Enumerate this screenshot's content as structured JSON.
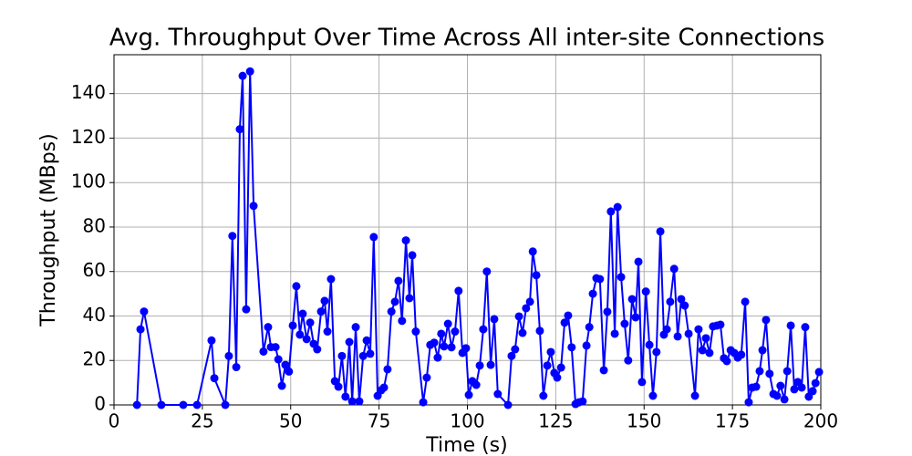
{
  "chart_data": {
    "type": "line",
    "title": "Avg. Throughput Over Time Across All inter-site Connections",
    "x_label": "Time (s)",
    "y_label": "Throughput (MBps)",
    "xlim": [
      0,
      200
    ],
    "xticks": [
      0,
      25,
      50,
      75,
      100,
      125,
      150,
      175,
      200
    ],
    "ylim": [
      0,
      157.5
    ],
    "yticks": [
      0,
      20,
      40,
      60,
      80,
      100,
      120,
      140
    ],
    "grid": true,
    "color": "#0000ff",
    "x": [
      6.5,
      7.5,
      8.5,
      13.4,
      19.6,
      23.5,
      27.6,
      28.4,
      31.5,
      32.5,
      33.5,
      34.6,
      35.6,
      36.4,
      37.4,
      38.5,
      39.5,
      42.3,
      43.6,
      44.4,
      45.7,
      46.5,
      47.5,
      48.5,
      49.5,
      50.6,
      51.6,
      52.6,
      53.4,
      54.5,
      55.5,
      56.5,
      57.5,
      58.6,
      59.6,
      60.4,
      61.4,
      62.5,
      63.5,
      64.5,
      65.5,
      66.6,
      67.4,
      68.4,
      69.4,
      70.5,
      71.5,
      72.5,
      73.5,
      74.6,
      75.6,
      76.4,
      77.4,
      78.5,
      79.5,
      80.5,
      81.5,
      82.6,
      83.6,
      84.4,
      85.4,
      87.5,
      88.5,
      89.5,
      90.6,
      91.6,
      92.6,
      93.4,
      94.5,
      95.5,
      96.5,
      97.5,
      98.6,
      99.6,
      100.4,
      101.4,
      102.5,
      103.5,
      104.5,
      105.5,
      106.6,
      107.6,
      108.6,
      111.5,
      112.5,
      113.5,
      114.6,
      115.6,
      116.6,
      117.7,
      118.5,
      119.5,
      120.5,
      121.5,
      122.6,
      123.6,
      124.6,
      125.4,
      126.5,
      127.5,
      128.5,
      129.5,
      130.6,
      131.6,
      132.6,
      133.7,
      134.5,
      135.5,
      136.5,
      137.5,
      138.6,
      139.6,
      140.6,
      141.7,
      142.5,
      143.5,
      144.5,
      145.5,
      146.6,
      147.6,
      148.4,
      149.4,
      150.5,
      151.5,
      152.5,
      153.5,
      154.6,
      155.6,
      156.4,
      157.4,
      158.5,
      159.5,
      160.5,
      161.5,
      162.6,
      164.4,
      165.4,
      166.5,
      167.5,
      168.5,
      169.5,
      170.6,
      171.6,
      172.6,
      173.4,
      174.5,
      175.5,
      176.5,
      177.5,
      178.6,
      179.6,
      180.6,
      181.7,
      182.7,
      183.5,
      184.5,
      185.5,
      186.6,
      187.6,
      188.6,
      189.7,
      190.5,
      191.5,
      192.5,
      193.5,
      194.6,
      195.6,
      196.6,
      197.7,
      198.5,
      199.5
    ],
    "values": [
      0,
      34,
      42,
      0,
      0,
      0,
      29,
      12,
      0,
      22,
      76,
      17,
      124,
      148,
      43,
      150,
      89.5,
      24,
      35,
      26,
      26,
      20.5,
      8.6,
      18,
      15,
      35.7,
      53.4,
      31.6,
      41,
      29.6,
      37,
      27.5,
      25,
      42,
      46.8,
      33,
      56.6,
      10.7,
      8.2,
      22,
      3.7,
      28.3,
      1.6,
      35,
      1.6,
      22,
      29,
      23,
      75.5,
      4.1,
      6.6,
      7.8,
      16,
      42,
      46.4,
      55.8,
      37.8,
      74,
      48,
      67.3,
      33,
      1.2,
      12.3,
      27,
      28,
      21.3,
      32,
      26.3,
      36.5,
      25.9,
      33,
      51.3,
      23.4,
      25.5,
      4.5,
      10.7,
      9,
      17.7,
      34,
      60,
      18,
      38.6,
      4.9,
      0,
      22,
      25,
      39.8,
      32.4,
      43.5,
      46.4,
      69,
      58.3,
      33.3,
      4.1,
      17.7,
      23.8,
      14.4,
      12.3,
      16.8,
      37,
      40.2,
      25.9,
      0.4,
      1.2,
      1.6,
      26.7,
      35,
      50,
      57,
      56.6,
      15.6,
      41.9,
      87,
      32,
      89,
      57.5,
      36.5,
      20,
      47.6,
      39.4,
      64.4,
      10.3,
      51,
      27,
      4.1,
      23.8,
      78,
      31.6,
      34,
      46.4,
      61.2,
      30.8,
      47.6,
      44.7,
      32,
      4.1,
      34,
      24.6,
      30,
      23.4,
      35.3,
      35.7,
      36.1,
      21,
      19.7,
      24.6,
      23.4,
      21.3,
      22.6,
      46.4,
      1.2,
      7.8,
      8.2,
      15.2,
      24.6,
      38.2,
      14,
      4.9,
      4.1,
      8.6,
      2.5,
      15.2,
      35.7,
      7,
      10.3,
      7.8,
      35,
      3.7,
      6.2,
      9.8,
      14.8
    ]
  }
}
